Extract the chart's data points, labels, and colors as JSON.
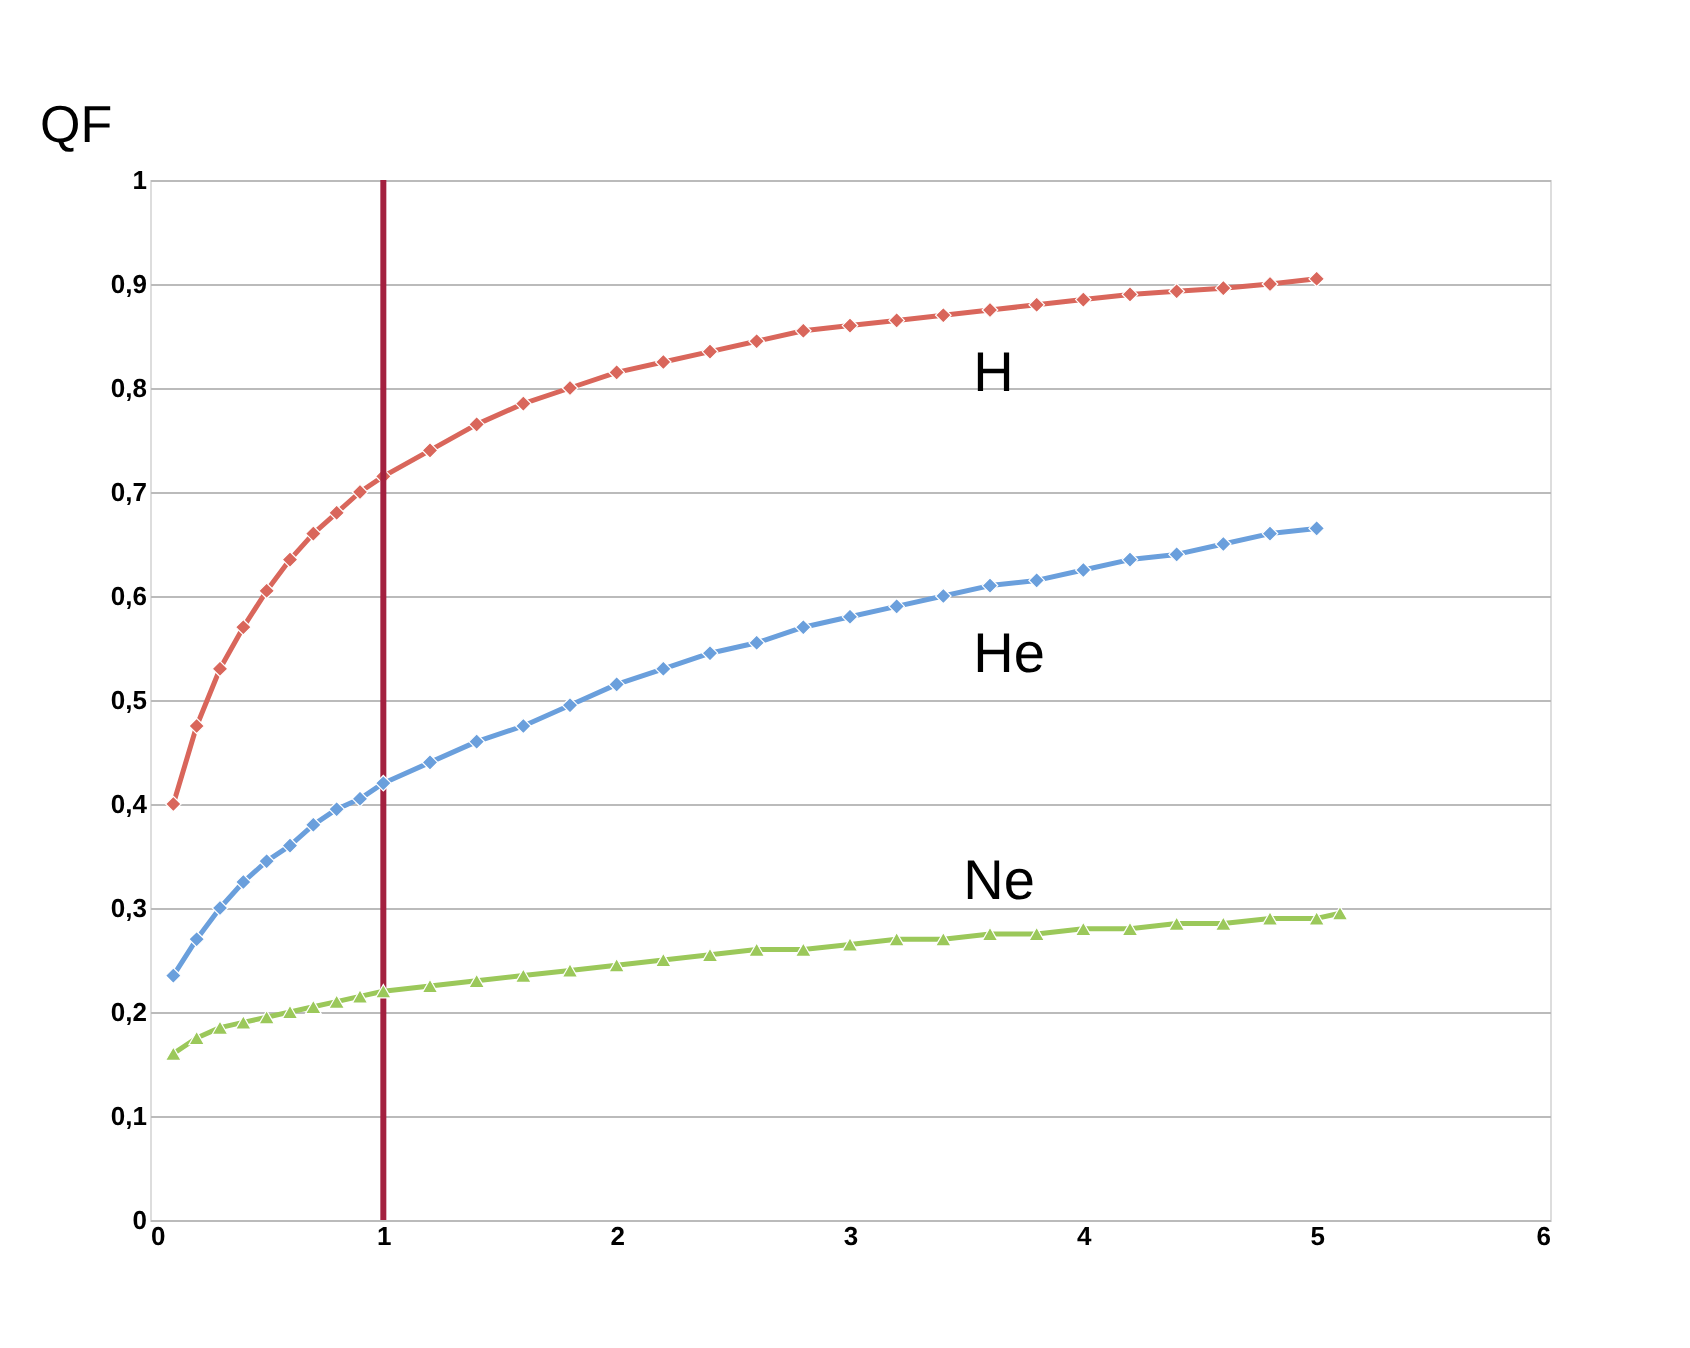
{
  "chart_data": {
    "type": "line",
    "ylabel": "QF",
    "xlim": [
      0,
      6
    ],
    "xticks": [
      0,
      1,
      2,
      3,
      4,
      5,
      6
    ],
    "ylim": [
      0,
      1
    ],
    "yticks": [
      0,
      {
        "value": 0.1,
        "label": "0,1"
      },
      {
        "value": 0.2,
        "label": "0,2"
      },
      {
        "value": 0.3,
        "label": "0,3"
      },
      {
        "value": 0.4,
        "label": "0,4"
      },
      {
        "value": 0.5,
        "label": "0,5"
      },
      {
        "value": 0.6,
        "label": "0,6"
      },
      {
        "value": 0.7,
        "label": "0,7"
      },
      {
        "value": 0.8,
        "label": "0,8"
      },
      {
        "value": 0.9,
        "label": "0,9"
      },
      1
    ],
    "grid": "y",
    "series": [
      {
        "name": "H",
        "color": "#d9665b",
        "marker": "diamond",
        "x": [
          0.1,
          0.2,
          0.3,
          0.4,
          0.5,
          0.6,
          0.7,
          0.8,
          0.9,
          1.0,
          1.2,
          1.4,
          1.6,
          1.8,
          2.0,
          2.2,
          2.4,
          2.6,
          2.8,
          3.0,
          3.2,
          3.4,
          3.6,
          3.8,
          4.0,
          4.2,
          4.4,
          4.6,
          4.8,
          5.0
        ],
        "values": [
          0.4,
          0.475,
          0.53,
          0.57,
          0.605,
          0.635,
          0.66,
          0.68,
          0.7,
          0.715,
          0.74,
          0.765,
          0.785,
          0.8,
          0.815,
          0.825,
          0.835,
          0.845,
          0.855,
          0.86,
          0.865,
          0.87,
          0.875,
          0.88,
          0.885,
          0.89,
          0.893,
          0.896,
          0.9,
          0.905
        ]
      },
      {
        "name": "He",
        "color": "#6a9fdc",
        "marker": "diamond",
        "x": [
          0.1,
          0.2,
          0.3,
          0.4,
          0.5,
          0.6,
          0.7,
          0.8,
          0.9,
          1.0,
          1.2,
          1.4,
          1.6,
          1.8,
          2.0,
          2.2,
          2.4,
          2.6,
          2.8,
          3.0,
          3.2,
          3.4,
          3.6,
          3.8,
          4.0,
          4.2,
          4.4,
          4.6,
          4.8,
          5.0
        ],
        "values": [
          0.235,
          0.27,
          0.3,
          0.325,
          0.345,
          0.36,
          0.38,
          0.395,
          0.405,
          0.42,
          0.44,
          0.46,
          0.475,
          0.495,
          0.515,
          0.53,
          0.545,
          0.555,
          0.57,
          0.58,
          0.59,
          0.6,
          0.61,
          0.615,
          0.625,
          0.635,
          0.64,
          0.65,
          0.66,
          0.665
        ]
      },
      {
        "name": "Ne",
        "color": "#9bc85a",
        "marker": "triangle",
        "x": [
          0.1,
          0.2,
          0.3,
          0.4,
          0.5,
          0.6,
          0.7,
          0.8,
          0.9,
          1.0,
          1.2,
          1.4,
          1.6,
          1.8,
          2.0,
          2.2,
          2.4,
          2.6,
          2.8,
          3.0,
          3.2,
          3.4,
          3.6,
          3.8,
          4.0,
          4.2,
          4.4,
          4.6,
          4.8,
          5.0,
          5.1
        ],
        "values": [
          0.16,
          0.175,
          0.185,
          0.19,
          0.195,
          0.2,
          0.205,
          0.21,
          0.215,
          0.22,
          0.225,
          0.23,
          0.235,
          0.24,
          0.245,
          0.25,
          0.255,
          0.26,
          0.26,
          0.265,
          0.27,
          0.27,
          0.275,
          0.275,
          0.28,
          0.28,
          0.285,
          0.285,
          0.29,
          0.29,
          0.295
        ]
      }
    ],
    "ref_lines": [
      {
        "axis": "x",
        "value": 1,
        "color": "#a3213f"
      }
    ]
  }
}
